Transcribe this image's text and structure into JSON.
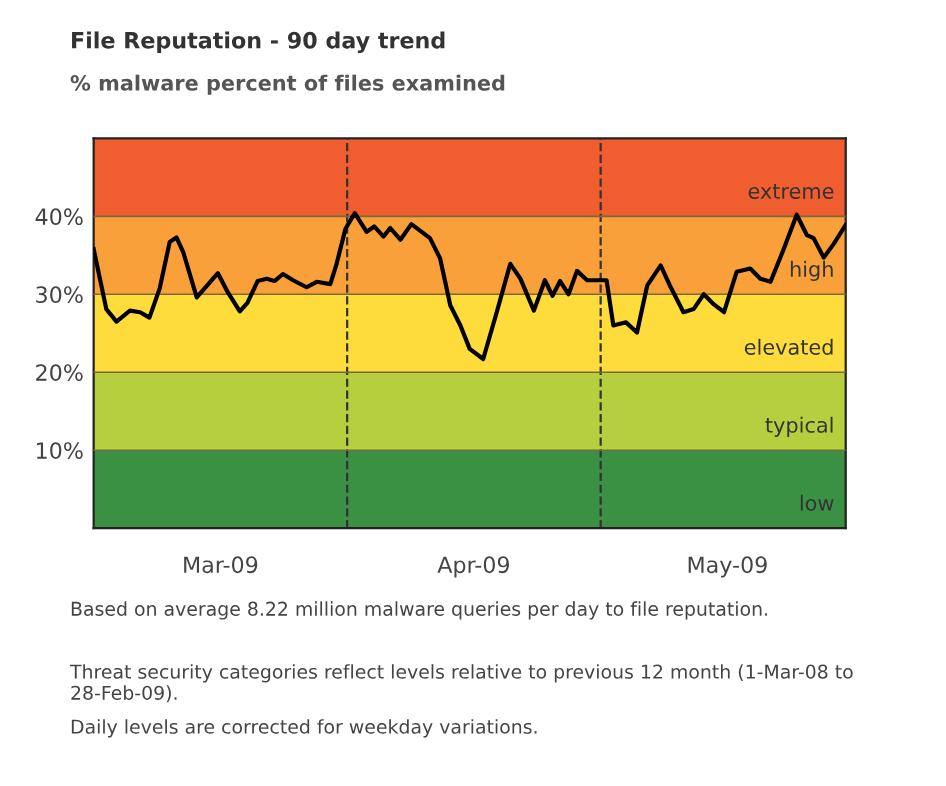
{
  "chart_data": {
    "type": "line",
    "title": "File Reputation - 90 day trend",
    "subtitle": "% malware percent of files examined",
    "x": [
      "2009-03-02T00:00",
      "2009-03-03T12:00",
      "2009-03-04T16:48",
      "2009-03-06T07:12",
      "2009-03-07T12:00",
      "2009-03-08T14:24",
      "2009-03-09T19:12",
      "2009-03-11T00:00",
      "2009-03-11T19:12",
      "2009-03-12T14:24",
      "2009-03-14T04:48",
      "2009-03-16T16:48",
      "2009-03-17T21:36",
      "2009-03-19T07:12",
      "2009-03-20T04:48",
      "2009-03-21T09:36",
      "2009-03-22T12:00",
      "2009-03-23T09:36",
      "2009-03-24T09:36",
      "2009-03-25T14:24",
      "2009-03-27T04:48",
      "2009-03-28T09:36",
      "2009-03-30T00:00",
      "2009-03-30T16:48",
      "2009-03-31T19:12",
      "2009-04-01T21:36",
      "2009-04-03T07:12",
      "2009-04-04T04:48",
      "2009-04-05T07:12",
      "2009-04-06T02:24",
      "2009-04-07T07:12",
      "2009-04-08T14:24",
      "2009-04-10T19:12",
      "2009-04-12T00:00",
      "2009-04-13T04:48",
      "2009-04-14T09:36",
      "2009-04-15T12:00",
      "2009-04-17T02:24",
      "2009-04-18T16:48",
      "2009-04-20T07:12",
      "2009-04-21T12:00",
      "2009-04-23T02:24",
      "2009-04-24T09:36",
      "2009-04-25T07:12",
      "2009-04-26T04:48",
      "2009-04-27T04:48",
      "2009-04-28T04:48",
      "2009-04-29T09:36",
      "2009-04-30T19:12",
      "2009-05-01T16:48",
      "2009-05-02T12:00",
      "2009-05-04T00:00",
      "2009-05-05T07:12",
      "2009-05-06T12:00",
      "2009-05-08T02:24",
      "2009-05-09T04:48",
      "2009-05-10T19:12",
      "2009-05-12T00:00",
      "2009-05-13T04:48",
      "2009-05-14T09:36",
      "2009-05-15T14:24",
      "2009-05-17T02:24",
      "2009-05-18T16:48",
      "2009-05-19T21:36",
      "2009-05-21T02:24",
      "2009-05-22T16:48",
      "2009-05-24T04:48",
      "2009-05-25T09:36",
      "2009-05-26T04:48",
      "2009-05-27T09:36",
      "2009-05-28T14:24",
      "2009-05-30T00:00"
    ],
    "series": [
      {
        "color": "#000000",
        "values": [
          35.8,
          28.1,
          26.5,
          27.9,
          27.7,
          27.0,
          30.7,
          36.7,
          37.3,
          35.4,
          29.6,
          32.7,
          30.2,
          27.8,
          28.9,
          31.7,
          32.0,
          31.7,
          32.6,
          31.8,
          30.9,
          31.6,
          31.3,
          33.7,
          38.4,
          40.4,
          38.0,
          38.7,
          37.4,
          38.5,
          37.0,
          39.0,
          37.2,
          34.6,
          28.6,
          26.0,
          23.0,
          21.7,
          27.7,
          33.9,
          32.0,
          27.9,
          31.8,
          29.8,
          31.7,
          30.0,
          33.0,
          31.8,
          31.8,
          31.8,
          26.0,
          26.4,
          25.1,
          31.1,
          33.7,
          31.1,
          27.7,
          28.1,
          30.0,
          28.7,
          27.7,
          32.9,
          33.3,
          32.0,
          31.6,
          35.9,
          40.2,
          37.6,
          37.2,
          34.7,
          36.5,
          38.9
        ]
      }
    ],
    "xlim": [
      "2009-03-02",
      "2009-05-30"
    ],
    "xticks": [
      {
        "value": "2009-03-17",
        "label": "Mar-09"
      },
      {
        "value": "2009-04-16",
        "label": "Apr-09"
      },
      {
        "value": "2009-05-16",
        "label": "May-09"
      }
    ],
    "ylim": [
      0,
      50
    ],
    "yticks": [
      {
        "value": 10,
        "label": "10%"
      },
      {
        "value": 20,
        "label": "20%"
      },
      {
        "value": 30,
        "label": "30%"
      },
      {
        "value": 40,
        "label": "40%"
      }
    ],
    "bands": [
      {
        "axis": "y",
        "from": 0,
        "to": 10,
        "label": "low",
        "color": "#3a9143"
      },
      {
        "axis": "y",
        "from": 10,
        "to": 20,
        "label": "typical",
        "color": "#b5cf3f"
      },
      {
        "axis": "y",
        "from": 20,
        "to": 30,
        "label": "elevated",
        "color": "#fddc3b"
      },
      {
        "axis": "y",
        "from": 30,
        "to": 40,
        "label": "high",
        "color": "#f9a03a"
      },
      {
        "axis": "y",
        "from": 40,
        "to": 50,
        "label": "extreme",
        "color": "#f05d2f"
      }
    ],
    "ref_lines": [
      {
        "axis": "x",
        "value": "2009-04-01",
        "color": "#333333",
        "line_style": "dashed"
      },
      {
        "axis": "x",
        "value": "2009-05-01",
        "color": "#333333",
        "line_style": "dashed"
      }
    ],
    "annotations": [
      "Based on average 8.22 million malware queries per day to file reputation.",
      "Threat security categories reflect levels relative to previous 12 month (1-Mar-08 to 28-Feb-09).",
      "Daily levels are corrected for weekday variations."
    ],
    "grid": "y",
    "legend": false,
    "marker": "none",
    "line_style": "solid"
  }
}
